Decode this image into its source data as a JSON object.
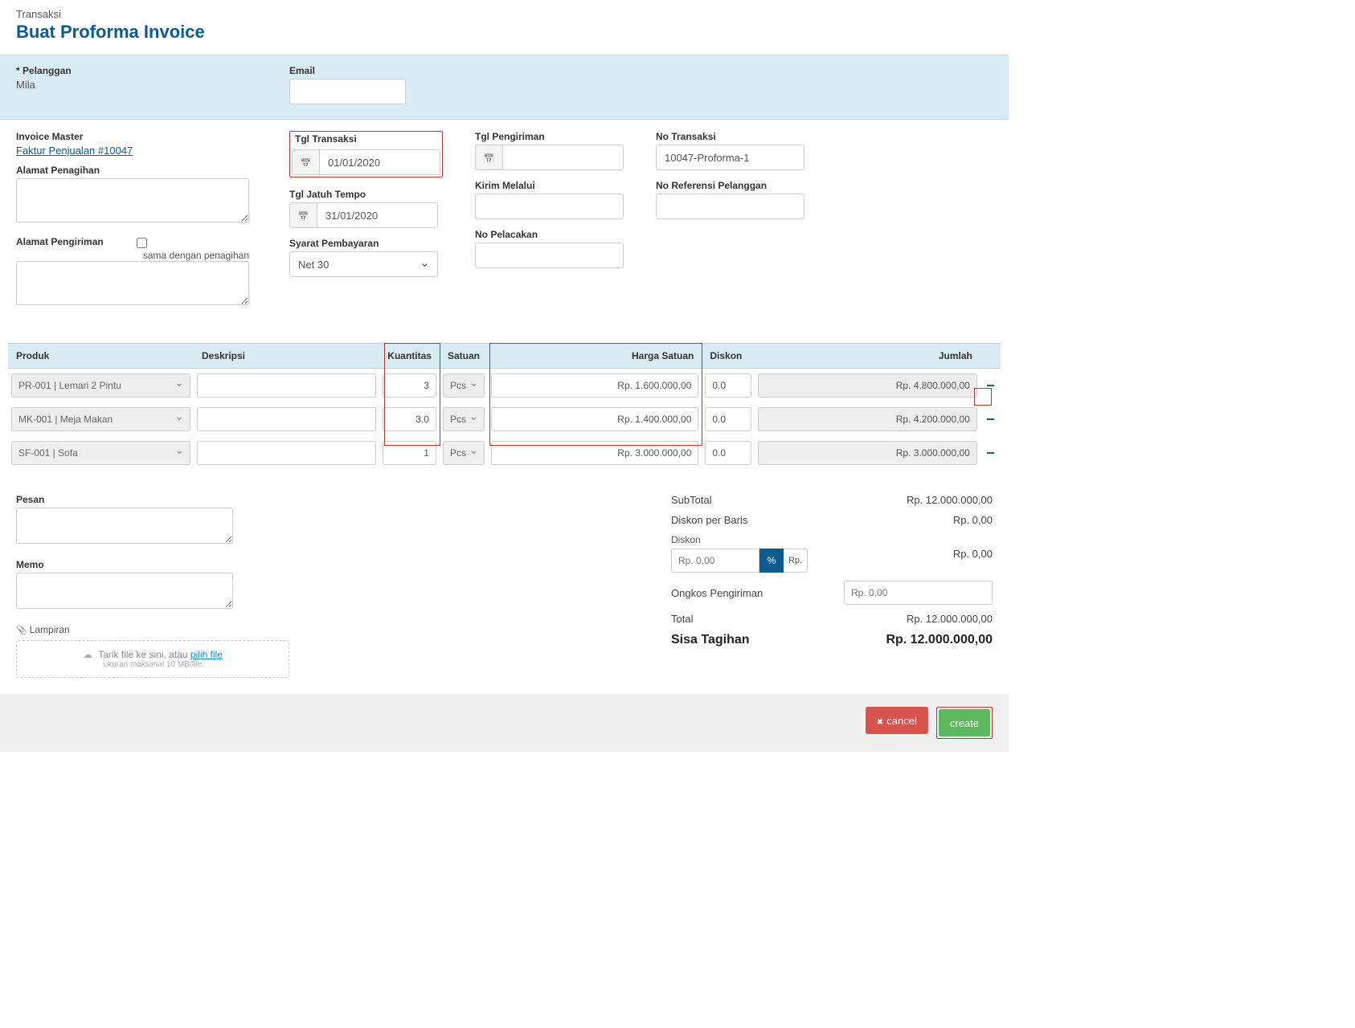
{
  "breadcrumb": "Transaksi",
  "page_title": "Buat Proforma Invoice",
  "customer_bar": {
    "pelanggan_label": "Pelanggan",
    "pelanggan_value": "Mila",
    "email_label": "Email",
    "email_value": ""
  },
  "fields": {
    "invoice_master_label": "Invoice Master",
    "invoice_master_link": "Faktur Penjualan #10047",
    "alamat_penagihan_label": "Alamat Penagihan",
    "alamat_penagihan_value": "",
    "alamat_pengiriman_label": "Alamat Pengiriman",
    "alamat_pengiriman_value": "",
    "sama_dengan_label": "sama dengan penagihan",
    "tgl_transaksi_label": "Tgl Transaksi",
    "tgl_transaksi_value": "01/01/2020",
    "tgl_jatuh_tempo_label": "Tgl Jatuh Tempo",
    "tgl_jatuh_tempo_value": "31/01/2020",
    "syarat_pembayaran_label": "Syarat Pembayaran",
    "syarat_pembayaran_value": "Net 30",
    "tgl_pengiriman_label": "Tgl Pengiriman",
    "tgl_pengiriman_value": "",
    "kirim_melalui_label": "Kirim Melalui",
    "kirim_melalui_value": "",
    "no_pelacakan_label": "No Pelacakan",
    "no_pelacakan_value": "",
    "no_transaksi_label": "No Transaksi",
    "no_transaksi_value": "10047-Proforma-1",
    "no_referensi_label": "No Referensi Pelanggan",
    "no_referensi_value": ""
  },
  "table": {
    "headers": {
      "produk": "Produk",
      "deskripsi": "Deskripsi",
      "kuantitas": "Kuantitas",
      "satuan": "Satuan",
      "harga_satuan": "Harga Satuan",
      "diskon": "Diskon",
      "jumlah": "Jumlah"
    },
    "rows": [
      {
        "produk": "PR-001 | Lemari 2 Pintu",
        "deskripsi": "",
        "kuantitas": "3",
        "satuan": "Pcs",
        "harga": "Rp. 1.600.000,00",
        "diskon": "0.0",
        "jumlah": "Rp. 4.800.000,00"
      },
      {
        "produk": "MK-001 | Meja Makan",
        "deskripsi": "",
        "kuantitas": "3.0",
        "satuan": "Pcs",
        "harga": "Rp. 1.400.000,00",
        "diskon": "0.0",
        "jumlah": "Rp. 4.200.000,00"
      },
      {
        "produk": "SF-001 | Sofa",
        "deskripsi": "",
        "kuantitas": "1",
        "satuan": "Pcs",
        "harga": "Rp. 3.000.000,00",
        "diskon": "0.0",
        "jumlah": "Rp. 3.000.000,00"
      }
    ]
  },
  "footer": {
    "pesan_label": "Pesan",
    "pesan_value": "",
    "memo_label": "Memo",
    "memo_value": "",
    "lampiran_label": "Lampiran",
    "upload_text": "Tarik file ke sini, atau ",
    "upload_link": "pilih file",
    "upload_sub": "ukuran maksimal 10 MB/file"
  },
  "totals": {
    "subtotal_label": "SubTotal",
    "subtotal_value": "Rp. 12.000.000,00",
    "diskon_baris_label": "Diskon per Baris",
    "diskon_baris_value": "Rp. 0,00",
    "diskon_label": "Diskon",
    "diskon_input": "Rp. 0,00",
    "diskon_pct": "%",
    "diskon_rp": "Rp.",
    "diskon_value": "Rp. 0,00",
    "ongkir_label": "Ongkos Pengiriman",
    "ongkir_input": "Rp. 0,00",
    "total_label": "Total",
    "total_value": "Rp. 12.000.000,00",
    "sisa_label": "Sisa Tagihan",
    "sisa_value": "Rp. 12.000.000,00"
  },
  "actions": {
    "cancel": "cancel",
    "create": "create"
  },
  "colors": {
    "header_blue": "#0a5b8f",
    "panel_bg": "#d8ecf3",
    "highlight_border": "#b43838",
    "cancel_btn": "#d9534f",
    "create_btn": "#5cb85c"
  }
}
